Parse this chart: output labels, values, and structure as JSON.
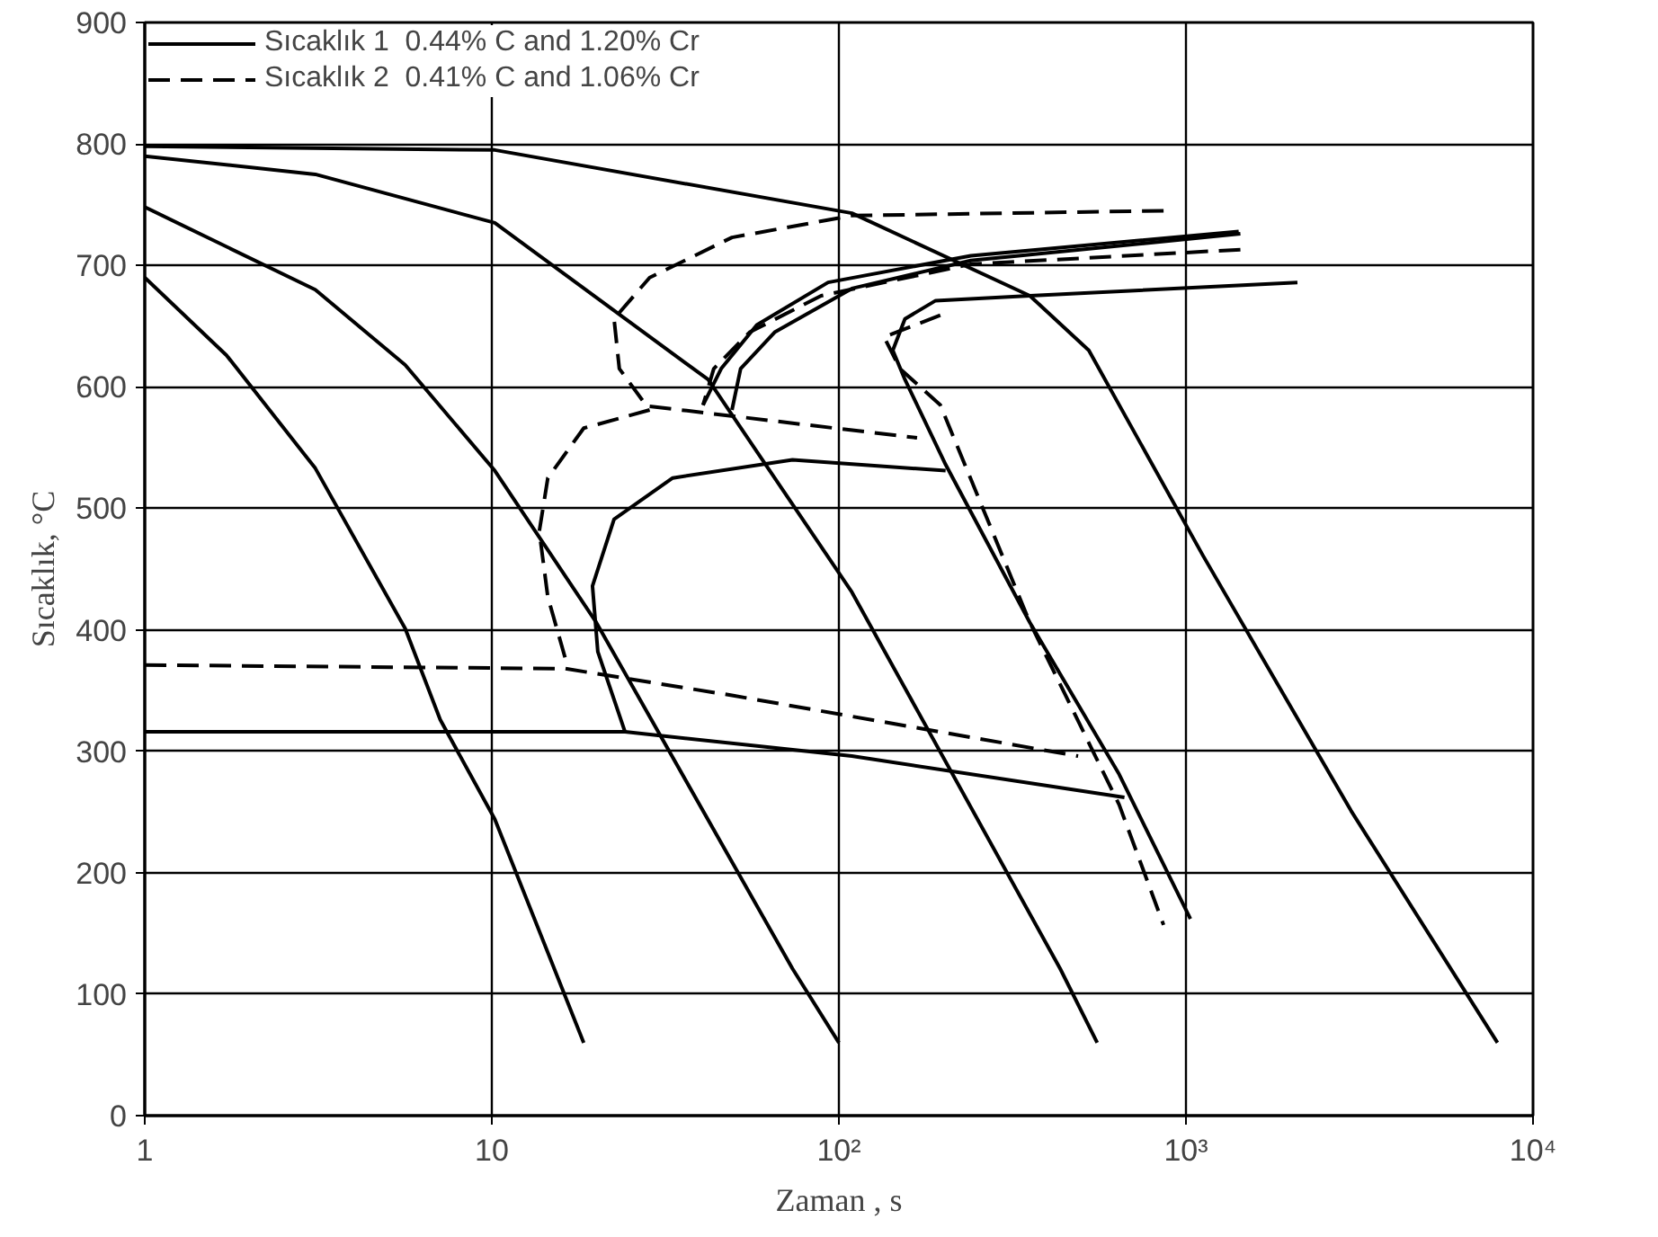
{
  "chart_data": {
    "type": "line",
    "xlabel": "Zaman , s",
    "ylabel": "Sıcaklık, °C",
    "xlim": [
      1,
      10000
    ],
    "ylim": [
      0,
      900
    ],
    "log": "x",
    "grid": true,
    "legend": "top left",
    "marker": "none",
    "xticks": [
      1,
      10,
      {
        "value": 100,
        "label": "10²"
      },
      {
        "value": 1000,
        "label": "10³"
      },
      {
        "value": 10000,
        "label": "10⁴"
      }
    ],
    "yticks": [
      0,
      100,
      200,
      300,
      400,
      500,
      600,
      700,
      800,
      900
    ],
    "series": [
      {
        "name": "Sıcaklık 1  0.44% C and 1.20% Cr",
        "color": "#000000",
        "line_style": "solid",
        "x": [
          1419,
          240,
          93.1,
          58.0,
          45.8,
          40.6
        ],
        "values": [
          728,
          708,
          686,
          651,
          615,
          585
        ]
      },
      {
        "name": "Sıcaklık 2  0.41% C and 1.06% Cr",
        "color": "#000000",
        "line_style": "dashed",
        "x": [
          862,
          109,
          49.2,
          28.5,
          22.5,
          23.3,
          27.8
        ],
        "values": [
          745,
          741,
          723,
          690,
          656,
          615,
          585
        ]
      },
      {
        "color": "#000000",
        "line_style": "solid",
        "x": [
          1,
          1.72,
          3.1,
          5.63,
          7.1,
          10.2,
          18.4
        ],
        "values": [
          690,
          626,
          533,
          401,
          326,
          244,
          60
        ]
      },
      {
        "color": "#000000",
        "line_style": "solid",
        "x": [
          1,
          3.1,
          5.63,
          10.2,
          20,
          73.5,
          100
        ],
        "values": [
          748,
          680,
          618,
          531,
          406,
          121,
          60
        ]
      },
      {
        "color": "#000000",
        "line_style": "solid",
        "x": [
          1,
          3.1,
          10.2,
          42,
          109,
          434,
          555
        ],
        "values": [
          790,
          775,
          735,
          606,
          431,
          121,
          60
        ]
      },
      {
        "color": "#000000",
        "line_style": "solid",
        "x": [
          1,
          10.2,
          109,
          355,
          525,
          1120,
          2990,
          7900
        ],
        "values": [
          798,
          795,
          743,
          675,
          630,
          461,
          251,
          60
        ]
      },
      {
        "color": "#000000",
        "line_style": "solid",
        "x": [
          1435,
          240,
          109,
          65.3,
          52.1,
          49.2
        ],
        "values": [
          726,
          704,
          681,
          645,
          615,
          581
        ]
      },
      {
        "color": "#000000",
        "line_style": "solid",
        "x": [
          2095,
          355,
          190,
          155,
          143,
          155,
          203,
          355,
          642,
          1030
        ],
        "values": [
          686,
          675,
          671,
          656,
          630,
          606,
          536,
          406,
          281,
          162
        ]
      },
      {
        "color": "#000000",
        "line_style": "solid",
        "x": [
          203,
          73.5,
          33.2,
          22.5,
          19.5,
          20.2,
          24.2
        ],
        "values": [
          531,
          540,
          525,
          491,
          436,
          382,
          316
        ]
      },
      {
        "color": "#000000",
        "line_style": "solid",
        "x": [
          1,
          24.2,
          109,
          665
        ],
        "values": [
          316,
          316,
          296,
          262
        ]
      },
      {
        "color": "#000000",
        "line_style": "dashed",
        "x": [
          1435,
          240,
          88.9,
          55.3,
          43.6,
          40.6
        ],
        "values": [
          713,
          701,
          675,
          645,
          615,
          585
        ]
      },
      {
        "color": "#000000",
        "line_style": "dashed",
        "x": [
          196,
          135,
          150,
          196,
          355,
          642,
          862
        ],
        "values": [
          659,
          641,
          615,
          585,
          406,
          256,
          157
        ]
      },
      {
        "color": "#000000",
        "line_style": "dashed",
        "x": [
          28.5,
          18.4,
          14.5,
          13.7,
          14.5,
          16.3
        ],
        "values": [
          581,
          566,
          525,
          481,
          427,
          376
        ]
      },
      {
        "color": "#000000",
        "line_style": "dashed",
        "x": [
          28.5,
          168
        ],
        "values": [
          584,
          558
        ]
      },
      {
        "color": "#000000",
        "line_style": "dashed",
        "x": [
          1,
          16.3,
          49.2,
          489
        ],
        "values": [
          371,
          368,
          346,
          296
        ]
      }
    ]
  }
}
